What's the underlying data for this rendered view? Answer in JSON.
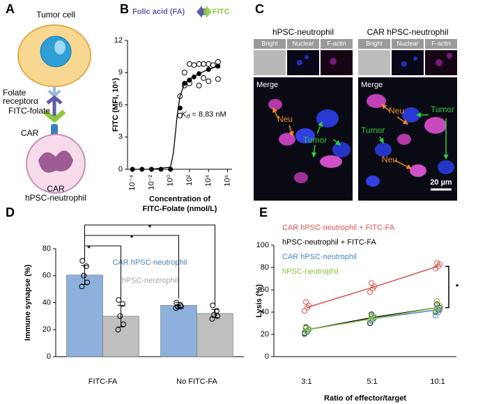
{
  "panel_labels": [
    "A",
    "B",
    "C",
    "D",
    "E"
  ],
  "panel_a": {
    "tumor": "Tumor cell",
    "receptor": [
      "Folate",
      "receptorα"
    ],
    "ligand": "FITC-folate",
    "car": "CAR",
    "neutrophil": [
      "CAR",
      "hPSC-neutrophil"
    ]
  },
  "panel_c": {
    "left": {
      "title": "hPSC-neutrophil",
      "channels": [
        "Bright",
        "Nuclear",
        "F-actin"
      ],
      "merge": "Merge",
      "labels": [
        "Neu",
        "Tumor"
      ]
    },
    "right": {
      "title": "CAR hPSC-neutrophil",
      "channels": [
        "Bright",
        "Nuclear",
        "F-actin"
      ],
      "merge": "Merge",
      "labels": [
        "Neu",
        "Tumor",
        "Tumor",
        "Neu"
      ],
      "scale": "20 µm"
    }
  },
  "chart_data": [
    {
      "type": "scatter",
      "header": {
        "left": "Folic acid (FA)",
        "left_color": "#5b5ea6",
        "right": "FITC",
        "right_color": "#8dc63f"
      },
      "y_label": "FITC (MFI, 10⁵)",
      "x_label": [
        "Concentration of",
        "FITC-Folate (nmol/L)"
      ],
      "log_x": true,
      "xlim": [
        3e-05,
        3000000
      ],
      "ylim": [
        0,
        12
      ],
      "yticks": [
        0,
        3,
        6,
        9,
        12
      ],
      "xticks": [
        {
          "value": 0.0001,
          "label": "10⁻⁴"
        },
        {
          "value": 0.01,
          "label": "10⁻²"
        },
        {
          "value": 1,
          "label": "10⁰"
        },
        {
          "value": 100,
          "label": "10²"
        },
        {
          "value": 10000,
          "label": "10⁴"
        },
        {
          "value": 1000000,
          "label": "10⁶"
        }
      ],
      "means": {
        "color": "#000000",
        "x": [
          0.0001,
          0.001,
          0.01,
          0.1,
          1,
          10,
          30,
          100,
          300,
          1000,
          10000,
          100000
        ],
        "values": [
          0,
          0,
          0,
          0,
          0,
          5.7,
          8.0,
          8.3,
          8.6,
          8.9,
          9.3,
          9.6
        ]
      },
      "replicates": {
        "color": "#000000",
        "x": [
          10,
          10,
          30,
          30,
          100,
          100,
          300,
          1000,
          1000,
          3000,
          3000,
          10000,
          10000,
          30000,
          100000,
          100000
        ],
        "values": [
          6.8,
          5.0,
          7.8,
          9.0,
          9.8,
          8.0,
          9.7,
          9.8,
          7.8,
          8.5,
          9.8,
          9.8,
          8.2,
          9.7,
          10.0,
          8.4
        ]
      },
      "fit": {
        "color": "#000000",
        "x": [
          0.0001,
          0.01,
          1,
          2,
          3,
          5,
          10,
          30,
          100,
          1000,
          10000,
          100000
        ],
        "values": [
          0,
          0,
          0.2,
          1.5,
          3.0,
          5.0,
          6.8,
          8.0,
          8.4,
          8.9,
          9.3,
          9.6
        ]
      },
      "annotation": {
        "symbol": "K",
        "subscript": "d",
        "text": " = 8.83 nM"
      }
    },
    {
      "type": "bar",
      "y_label": "Immune synapse (%)",
      "categories": [
        "FITC-FA",
        "No FITC-FA"
      ],
      "ylim": [
        0,
        80
      ],
      "yticks": [
        0,
        20,
        40,
        60,
        80
      ],
      "series": [
        {
          "name": "CAR hPSC-neutrophil",
          "color": "#8eb0dc",
          "text_color": "#4a7dc0",
          "values": [
            60.5,
            38
          ],
          "errors": [
            7,
            2
          ],
          "points": [
            [
              71,
              67,
              60,
              55,
              52
            ],
            [
              40,
              38,
              37,
              37,
              36
            ]
          ]
        },
        {
          "name": "hPSC-neutrophil",
          "color": "#bfbfbf",
          "text_color": "#a6a6a6",
          "values": [
            30,
            32
          ],
          "errors": [
            8,
            3
          ],
          "points": [
            [
              42,
              39,
              30,
              24,
              20
            ],
            [
              38,
              34,
              31,
              30,
              28
            ]
          ]
        }
      ],
      "significance": [
        "*",
        "*",
        "*"
      ]
    },
    {
      "type": "line",
      "y_label": "Lysis (%)",
      "x_label": "Ratio of effector/target",
      "categories": [
        "3:1",
        "5:1",
        "10:1"
      ],
      "ylim": [
        0,
        100
      ],
      "yticks": [
        0,
        20,
        40,
        60,
        80,
        100
      ],
      "series": [
        {
          "name": "CAR hPSC-neutrophil + FITC-FA",
          "color": "#d9534f",
          "values": [
            44,
            62,
            81
          ],
          "points": [
            [
              41,
              44,
              46,
              49
            ],
            [
              58,
              61,
              63,
              66
            ],
            [
              79,
              81,
              83,
              84
            ]
          ]
        },
        {
          "name": "hPSC-neutrophil + FITC-FA",
          "color": "#000000",
          "values": [
            24,
            35,
            44
          ],
          "points": [
            [
              21,
              23,
              24,
              26
            ],
            [
              30,
              33,
              35,
              38
            ],
            [
              40,
              42,
              44,
              47
            ]
          ]
        },
        {
          "name": "CAR hPSC-neutrophil",
          "color": "#4a86c8",
          "values": [
            24,
            34,
            42
          ],
          "points": [
            [
              20,
              22,
              24,
              27
            ],
            [
              32,
              33,
              35,
              36
            ],
            [
              37,
              40,
              42,
              44
            ]
          ]
        },
        {
          "name": "hPSC-neutrophil",
          "color": "#8cbf3f",
          "values": [
            24,
            34,
            44
          ],
          "points": [
            [
              22,
              23,
              25,
              27
            ],
            [
              33,
              34,
              36,
              37
            ],
            [
              41,
              43,
              46,
              50
            ]
          ]
        }
      ],
      "significance": "*"
    }
  ]
}
